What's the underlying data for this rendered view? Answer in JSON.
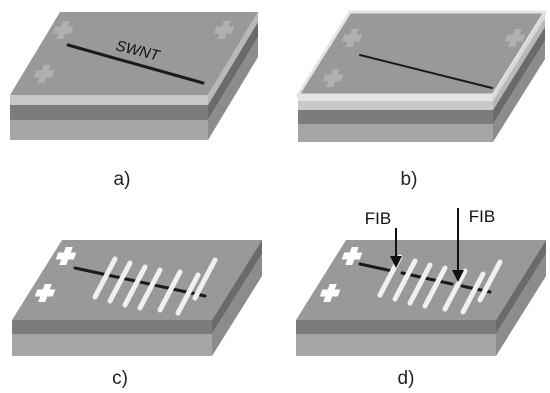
{
  "panels": [
    {
      "label": "a)",
      "annotation": "SWNT"
    },
    {
      "label": "b)"
    },
    {
      "label": "c)"
    },
    {
      "label": "d)",
      "arrows": [
        "FIB",
        "FIB"
      ]
    }
  ],
  "colors": {
    "top_surface": "#999999",
    "front_top_layer": "#c8c8c8",
    "front_mid_layer": "#7c7c7c",
    "front_bottom_layer": "#a5a5a5",
    "resist_layer": "#e4e4e4",
    "nanotube": "#1a1a1a",
    "alignment_mark": "#b0b0b0",
    "alignment_mark_white": "#ffffff",
    "electrode": "#e8e8e8"
  }
}
